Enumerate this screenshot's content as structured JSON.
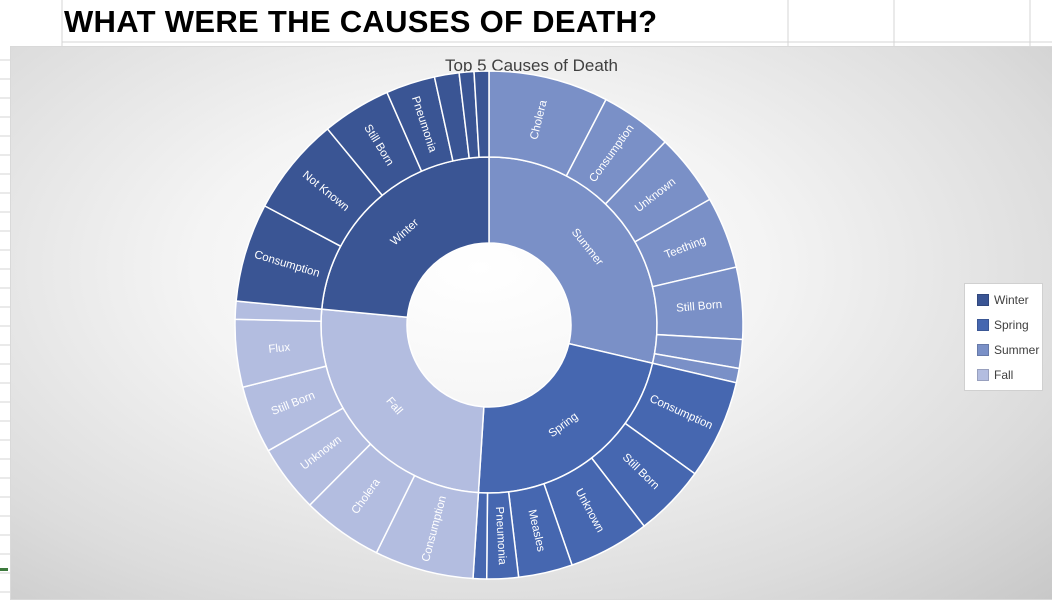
{
  "sheet": {
    "heading": "WHAT WERE THE CAUSES OF DEATH?"
  },
  "chart_data": {
    "type": "sunburst",
    "title": "Top 5  Causes of Death",
    "legend_position": "right",
    "colors": {
      "Winter": "#3a5594",
      "Spring": "#4667b0",
      "Summer": "#7a90c7",
      "Fall": "#b3bde0"
    },
    "series": [
      {
        "name": "Summer",
        "value": 100,
        "children": [
          {
            "name": "Cholera",
            "value": 25
          },
          {
            "name": "Consumption",
            "value": 15
          },
          {
            "name": "Unknown",
            "value": 15
          },
          {
            "name": "Teething",
            "value": 15
          },
          {
            "name": "Still Born",
            "value": 15
          },
          {
            "name": "",
            "value": 6
          },
          {
            "name": "",
            "value": 3
          }
        ]
      },
      {
        "name": "Spring",
        "value": 78,
        "children": [
          {
            "name": "Consumption",
            "value": 22
          },
          {
            "name": "Still Born",
            "value": 16
          },
          {
            "name": "Unknown",
            "value": 18
          },
          {
            "name": "Measles",
            "value": 12
          },
          {
            "name": "Pneumonia",
            "value": 7
          },
          {
            "name": "",
            "value": 3
          }
        ]
      },
      {
        "name": "Fall",
        "value": 89,
        "children": [
          {
            "name": "Consumption",
            "value": 22
          },
          {
            "name": "Cholera",
            "value": 18
          },
          {
            "name": "Unknown",
            "value": 15
          },
          {
            "name": "Still Born",
            "value": 15
          },
          {
            "name": "Flux",
            "value": 15
          },
          {
            "name": "",
            "value": 4
          }
        ]
      },
      {
        "name": "Winter",
        "value": 82,
        "children": [
          {
            "name": "Consumption",
            "value": 20
          },
          {
            "name": "Not Known",
            "value": 20
          },
          {
            "name": "Still Born",
            "value": 14
          },
          {
            "name": "Pneumonia",
            "value": 10
          },
          {
            "name": "",
            "value": 5
          },
          {
            "name": "",
            "value": 3
          },
          {
            "name": "",
            "value": 3
          }
        ]
      }
    ],
    "legend": [
      "Winter",
      "Spring",
      "Summer",
      "Fall"
    ]
  }
}
